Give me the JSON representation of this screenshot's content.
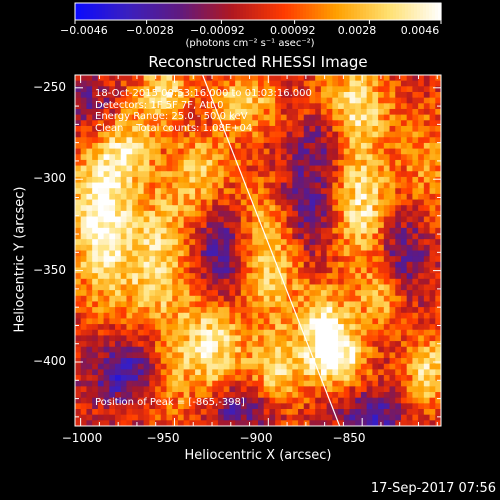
{
  "colorbar": {
    "ticks": [
      "−0.0046",
      "−0.0028",
      "−0.00092",
      "0.00092",
      "0.0028",
      "0.0046"
    ],
    "units": "(photons cm⁻² s⁻¹ asec⁻²)",
    "colormap": [
      "#0a0aff",
      "#3a1fc0",
      "#601a80",
      "#b01820",
      "#ff3a00",
      "#ffa000",
      "#ffe070",
      "#ffffff"
    ]
  },
  "overlay": {
    "time_range": "18-Oct-2015 00:53:16.000 to 01:03:16.000",
    "detectors": "Detectors: 1F 5F 7F, Att 0",
    "energy_range": "Energy Range: 25.0 - 50.0 keV",
    "method_counts": "Clean    Total counts: 1.08E+04",
    "peak_position": "Position of Peak = [-865,-398]"
  },
  "timestamp": "17-Sep-2017 07:56",
  "chart_data": {
    "type": "heatmap",
    "title": "Reconstructed RHESSI Image",
    "xlabel": "Heliocentric X (arcsec)",
    "ylabel": "Heliocentric Y (arcsec)",
    "xlim": [
      -1003,
      -808
    ],
    "ylim": [
      -435,
      -243
    ],
    "xticks": [
      -1000,
      -950,
      -900,
      -850
    ],
    "yticks": [
      -250,
      -300,
      -350,
      -400
    ],
    "xtick_labels": [
      "−1000",
      "−950",
      "−900",
      "−850"
    ],
    "ytick_labels": [
      "−250",
      "−300",
      "−350",
      "−400"
    ],
    "color_range": [
      -0.0046,
      0.0046
    ],
    "limb_line": {
      "x": [
        -935,
        -862
      ],
      "y": [
        -243,
        -435
      ]
    },
    "peak": {
      "x": -865,
      "y": -398
    },
    "blobs": [
      {
        "x": -990,
        "y": -320,
        "sx": 11,
        "sy": 32,
        "v": 0.0042
      },
      {
        "x": -975,
        "y": -285,
        "sx": 9,
        "sy": 12,
        "v": 0.003
      },
      {
        "x": -955,
        "y": -255,
        "sx": 11,
        "sy": 12,
        "v": 0.0036
      },
      {
        "x": -960,
        "y": -345,
        "sx": 15,
        "sy": 28,
        "v": 0.0034
      },
      {
        "x": -955,
        "y": -410,
        "sx": 10,
        "sy": 16,
        "v": 0.0018
      },
      {
        "x": -935,
        "y": -298,
        "sx": 12,
        "sy": 18,
        "v": 0.003
      },
      {
        "x": -930,
        "y": -390,
        "sx": 12,
        "sy": 20,
        "v": 0.004
      },
      {
        "x": -913,
        "y": -258,
        "sx": 12,
        "sy": 12,
        "v": 0.003
      },
      {
        "x": -900,
        "y": -340,
        "sx": 14,
        "sy": 26,
        "v": 0.0038
      },
      {
        "x": -895,
        "y": -405,
        "sx": 10,
        "sy": 14,
        "v": 0.0032
      },
      {
        "x": -870,
        "y": -378,
        "sx": 10,
        "sy": 13,
        "v": 0.0036
      },
      {
        "x": -864,
        "y": -398,
        "sx": 11,
        "sy": 11,
        "v": 0.0046
      },
      {
        "x": -855,
        "y": -260,
        "sx": 14,
        "sy": 16,
        "v": 0.0034
      },
      {
        "x": -850,
        "y": -315,
        "sx": 12,
        "sy": 24,
        "v": 0.0038
      },
      {
        "x": -840,
        "y": -365,
        "sx": 8,
        "sy": 12,
        "v": 0.0028
      },
      {
        "x": -815,
        "y": -290,
        "sx": 10,
        "sy": 20,
        "v": 0.0018
      },
      {
        "x": -815,
        "y": -405,
        "sx": 8,
        "sy": 14,
        "v": 0.0034
      },
      {
        "x": -925,
        "y": -340,
        "sx": 11,
        "sy": 24,
        "v": -0.0036
      },
      {
        "x": -880,
        "y": -315,
        "sx": 12,
        "sy": 22,
        "v": -0.003
      },
      {
        "x": -975,
        "y": -405,
        "sx": 14,
        "sy": 14,
        "v": -0.0032
      },
      {
        "x": -995,
        "y": -260,
        "sx": 10,
        "sy": 12,
        "v": -0.0022
      },
      {
        "x": -915,
        "y": -425,
        "sx": 12,
        "sy": 10,
        "v": -0.0026
      },
      {
        "x": -845,
        "y": -430,
        "sx": 12,
        "sy": 10,
        "v": -0.0026
      },
      {
        "x": -830,
        "y": -340,
        "sx": 10,
        "sy": 18,
        "v": -0.0024
      },
      {
        "x": -870,
        "y": -275,
        "sx": 8,
        "sy": 12,
        "v": -0.002
      },
      {
        "x": -940,
        "y": -265,
        "sx": 8,
        "sy": 8,
        "v": -0.0014
      }
    ]
  }
}
